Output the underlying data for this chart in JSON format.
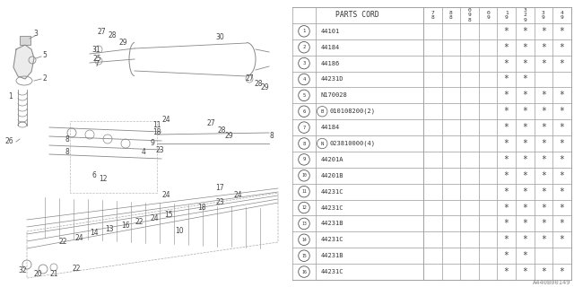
{
  "part_number_label": "A440B00149",
  "table_header_col1": "PARTS CORD",
  "col_headers": [
    "8\n7",
    "8\n8",
    "8\n9\n0",
    "9\n0",
    "9\n1",
    "9\n2\n3",
    "9\n3",
    "9\n4"
  ],
  "rows": [
    {
      "num": "1",
      "code": "44101",
      "stars": [
        false,
        false,
        false,
        false,
        true,
        true,
        true,
        true
      ]
    },
    {
      "num": "2",
      "code": "44184",
      "stars": [
        false,
        false,
        false,
        false,
        true,
        true,
        true,
        true
      ]
    },
    {
      "num": "3",
      "code": "44186",
      "stars": [
        false,
        false,
        false,
        false,
        true,
        true,
        true,
        true
      ]
    },
    {
      "num": "4",
      "code": "44231D",
      "stars": [
        false,
        false,
        false,
        false,
        true,
        true,
        false,
        false
      ]
    },
    {
      "num": "5",
      "code": "N170028",
      "stars": [
        false,
        false,
        false,
        false,
        true,
        true,
        true,
        true
      ]
    },
    {
      "num": "6",
      "code": "B010108200(2)",
      "stars": [
        false,
        false,
        false,
        false,
        true,
        true,
        true,
        true
      ]
    },
    {
      "num": "7",
      "code": "44184",
      "stars": [
        false,
        false,
        false,
        false,
        true,
        true,
        true,
        true
      ]
    },
    {
      "num": "8",
      "code": "N023810000(4)",
      "stars": [
        false,
        false,
        false,
        false,
        true,
        true,
        true,
        true
      ]
    },
    {
      "num": "9",
      "code": "44201A",
      "stars": [
        false,
        false,
        false,
        false,
        true,
        true,
        true,
        true
      ]
    },
    {
      "num": "10",
      "code": "44201B",
      "stars": [
        false,
        false,
        false,
        false,
        true,
        true,
        true,
        true
      ]
    },
    {
      "num": "11",
      "code": "44231C",
      "stars": [
        false,
        false,
        false,
        false,
        true,
        true,
        true,
        true
      ]
    },
    {
      "num": "12",
      "code": "44231C",
      "stars": [
        false,
        false,
        false,
        false,
        true,
        true,
        true,
        true
      ]
    },
    {
      "num": "13",
      "code": "44231B",
      "stars": [
        false,
        false,
        false,
        false,
        true,
        true,
        true,
        true
      ]
    },
    {
      "num": "14",
      "code": "44231C",
      "stars": [
        false,
        false,
        false,
        false,
        true,
        true,
        true,
        true
      ]
    },
    {
      "num": "15",
      "code": "44231B",
      "stars": [
        false,
        false,
        false,
        false,
        true,
        true,
        false,
        false
      ]
    },
    {
      "num": "16",
      "code": "44231C",
      "stars": [
        false,
        false,
        false,
        false,
        true,
        true,
        true,
        true
      ]
    }
  ],
  "row6_circle_prefix": "B",
  "row8_circle_prefix": "N",
  "bg_color": "#ffffff",
  "line_color": "#aaaaaa",
  "text_color": "#333333"
}
